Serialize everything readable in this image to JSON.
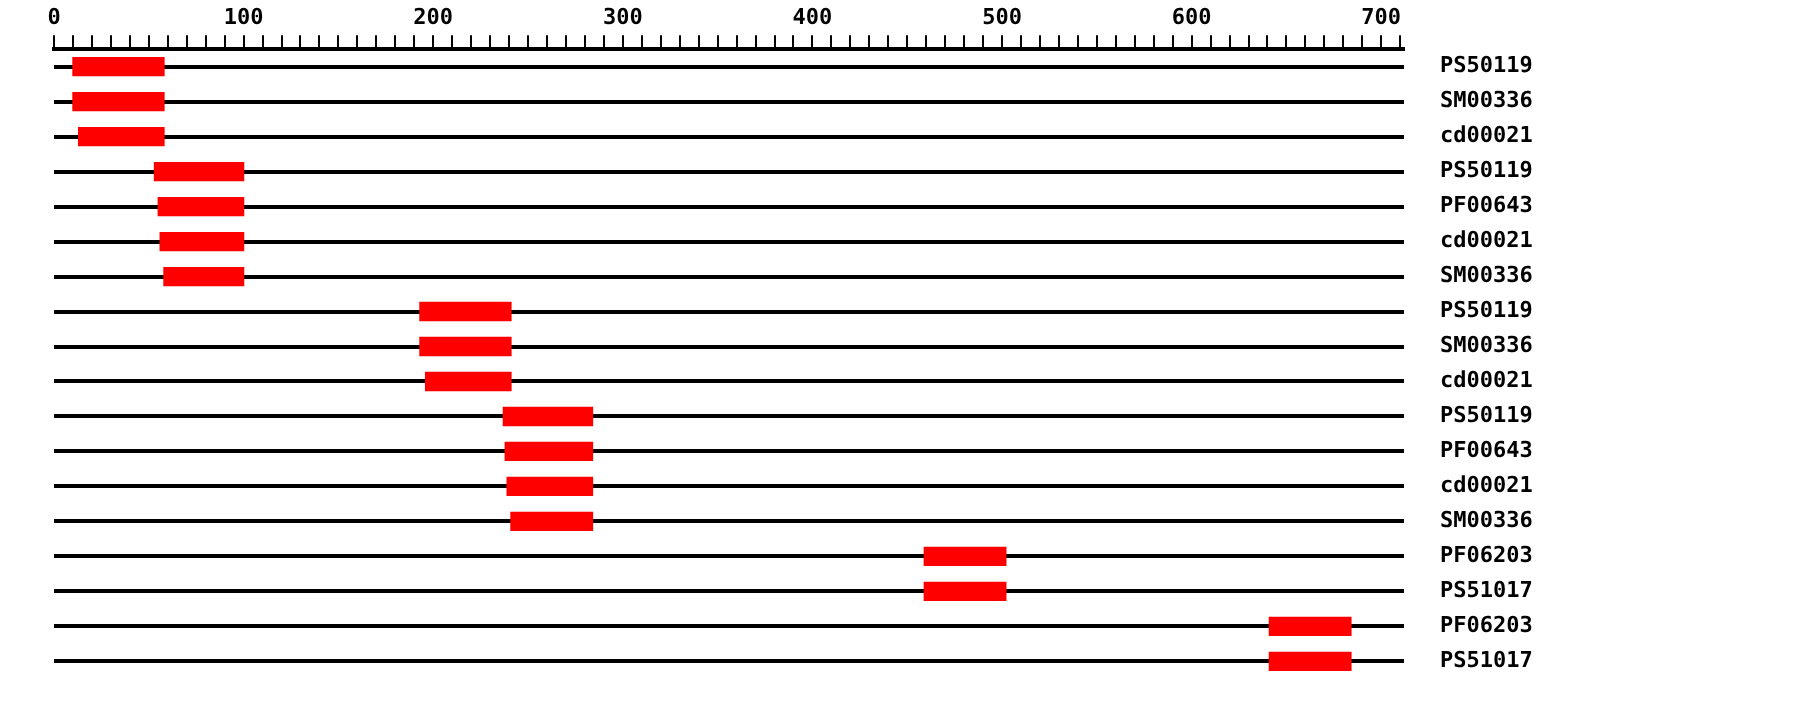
{
  "chart_data": {
    "type": "bar",
    "orientation": "horizontal",
    "categories": [
      "PS50119",
      "SM00336",
      "cd00021",
      "PS50119",
      "PF00643",
      "cd00021",
      "SM00336",
      "PS50119",
      "SM00336",
      "cd00021",
      "PS50119",
      "PF00643",
      "cd00021",
      "SM00336",
      "PF06203",
      "PS51017",
      "PF06203",
      "PS51017"
    ],
    "base": [
      10,
      10,
      13,
      53,
      55,
      56,
      58,
      193,
      193,
      196,
      237,
      238,
      239,
      241,
      459,
      459,
      641,
      641
    ],
    "values": [
      48,
      48,
      45,
      47,
      45,
      44,
      42,
      48,
      48,
      45,
      47,
      46,
      45,
      43,
      43,
      43,
      43,
      43
    ],
    "color": "#ff0000",
    "xlim": [
      0,
      712
    ],
    "xticks": [
      0,
      {
        "value": 10,
        "label": null
      },
      {
        "value": 20,
        "label": null
      },
      {
        "value": 30,
        "label": null
      },
      {
        "value": 40,
        "label": null
      },
      {
        "value": 50,
        "label": null
      },
      {
        "value": 60,
        "label": null
      },
      {
        "value": 70,
        "label": null
      },
      {
        "value": 80,
        "label": null
      },
      {
        "value": 90,
        "label": null
      },
      100,
      {
        "value": 110,
        "label": null
      },
      {
        "value": 120,
        "label": null
      },
      {
        "value": 130,
        "label": null
      },
      {
        "value": 140,
        "label": null
      },
      {
        "value": 150,
        "label": null
      },
      {
        "value": 160,
        "label": null
      },
      {
        "value": 170,
        "label": null
      },
      {
        "value": 180,
        "label": null
      },
      {
        "value": 190,
        "label": null
      },
      200,
      {
        "value": 210,
        "label": null
      },
      {
        "value": 220,
        "label": null
      },
      {
        "value": 230,
        "label": null
      },
      {
        "value": 240,
        "label": null
      },
      {
        "value": 250,
        "label": null
      },
      {
        "value": 260,
        "label": null
      },
      {
        "value": 270,
        "label": null
      },
      {
        "value": 280,
        "label": null
      },
      {
        "value": 290,
        "label": null
      },
      300,
      {
        "value": 310,
        "label": null
      },
      {
        "value": 320,
        "label": null
      },
      {
        "value": 330,
        "label": null
      },
      {
        "value": 340,
        "label": null
      },
      {
        "value": 350,
        "label": null
      },
      {
        "value": 360,
        "label": null
      },
      {
        "value": 370,
        "label": null
      },
      {
        "value": 380,
        "label": null
      },
      {
        "value": 390,
        "label": null
      },
      400,
      {
        "value": 410,
        "label": null
      },
      {
        "value": 420,
        "label": null
      },
      {
        "value": 430,
        "label": null
      },
      {
        "value": 440,
        "label": null
      },
      {
        "value": 450,
        "label": null
      },
      {
        "value": 460,
        "label": null
      },
      {
        "value": 470,
        "label": null
      },
      {
        "value": 480,
        "label": null
      },
      {
        "value": 490,
        "label": null
      },
      500,
      {
        "value": 510,
        "label": null
      },
      {
        "value": 520,
        "label": null
      },
      {
        "value": 530,
        "label": null
      },
      {
        "value": 540,
        "label": null
      },
      {
        "value": 550,
        "label": null
      },
      {
        "value": 560,
        "label": null
      },
      {
        "value": 570,
        "label": null
      },
      {
        "value": 580,
        "label": null
      },
      {
        "value": 590,
        "label": null
      },
      600,
      {
        "value": 610,
        "label": null
      },
      {
        "value": 620,
        "label": null
      },
      {
        "value": 630,
        "label": null
      },
      {
        "value": 640,
        "label": null
      },
      {
        "value": 650,
        "label": null
      },
      {
        "value": 660,
        "label": null
      },
      {
        "value": 670,
        "label": null
      },
      {
        "value": 680,
        "label": null
      },
      {
        "value": 690,
        "label": null
      },
      700,
      {
        "value": 710,
        "label": null
      }
    ],
    "grid": "y",
    "legend": false
  }
}
